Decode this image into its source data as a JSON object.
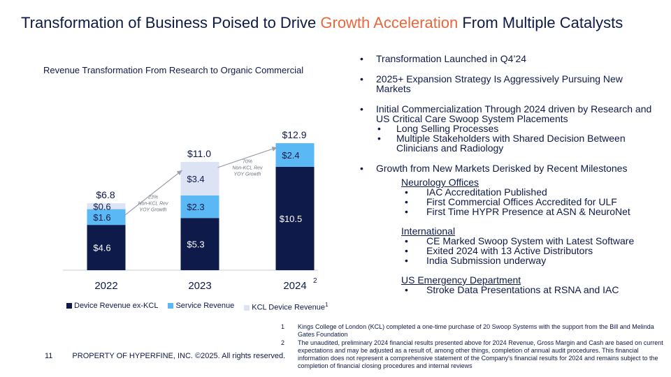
{
  "title": {
    "part1": "Transformation of Business Poised to Drive ",
    "highlight": "Growth Acceleration",
    "part2": " From Multiple Catalysts",
    "highlight_color": "#e8673c"
  },
  "chart_data": {
    "type": "bar",
    "stacked": true,
    "title": "Revenue Transformation From Research to Organic Commercial",
    "categories": [
      "2022",
      "2023",
      "2024"
    ],
    "category_superscripts": [
      "",
      "",
      "2"
    ],
    "series": [
      {
        "name": "Device Revenue ex-KCL",
        "color": "#0d1a4a",
        "values": [
          4.6,
          5.3,
          10.5
        ],
        "labels": [
          "$4.6",
          "$5.3",
          "$10.5"
        ]
      },
      {
        "name": "Service Revenue",
        "color": "#5ab8f5",
        "values": [
          1.6,
          2.3,
          2.4
        ],
        "labels": [
          "$1.6",
          "$2.3",
          "$2.4"
        ]
      },
      {
        "name": "KCL Device Revenue",
        "name_superscript": "1",
        "color": "#dbe3f4",
        "values": [
          0.6,
          3.4,
          null
        ],
        "labels": [
          "$0.6",
          "$3.4",
          ""
        ]
      }
    ],
    "totals": [
      "$6.8",
      "$11.0",
      "$12.9"
    ],
    "annotations": [
      {
        "line1": "23%",
        "line2": "Non-KCL Rev",
        "line3": "YOY Growth"
      },
      {
        "line1": "70%",
        "line2": "Non-KCL Rev",
        "line3": "YOY Growth"
      }
    ],
    "ylim": [
      0,
      14
    ],
    "legend": "bottom"
  },
  "bullets": {
    "b1": "Transformation Launched in Q4’24",
    "b2": "2025+ Expansion Strategy Is Aggressively Pursuing New Markets",
    "b3": "Initial Commercialization Through 2024 driven by Research and US Critical Care Swoop System Placements",
    "b3_sub1": "Long Selling Processes",
    "b3_sub2": "Multiple Stakeholders with Shared Decision Between Clinicians and Radiology",
    "b4": "Growth from New Markets Derisked by Recent Milestones",
    "groups": {
      "neuro_title": "Neurology Offices",
      "neuro_1": "IAC Accreditation Published",
      "neuro_2": "First Commercial Offices Accredited for ULF",
      "neuro_3": "First Time HYPR Presence at ASN & NeuroNet",
      "intl_title": "International",
      "intl_1": "CE Marked Swoop System with Latest Software",
      "intl_2": "Exited 2024 with 13 Active Distributors",
      "intl_3": "India Submission underway",
      "ed_title": "US Emergency Department",
      "ed_1": "Stroke Data Presentations at RSNA and IAC"
    }
  },
  "footer": {
    "page": "11",
    "text": "PROPERTY OF HYPERFINE, INC. ©2025. All rights reserved."
  },
  "notes": [
    {
      "num": "1",
      "text": "Kings College of London (KCL) completed a one-time purchase of 20 Swoop Systems with the support from the Bill and Melinda Gates Foundation"
    },
    {
      "num": "2",
      "text": "The unaudited, preliminary 2024 financial results presented above for 2024 Revenue, Gross Margin and Cash are based on current expectations and may be adjusted as a result of, among other things, completion of annual audit procedures.   This financial information does not represent a comprehensive statement of the Company's financial results for 2024 and remains subject to the completion of financial closing procedures and internal reviews"
    }
  ]
}
